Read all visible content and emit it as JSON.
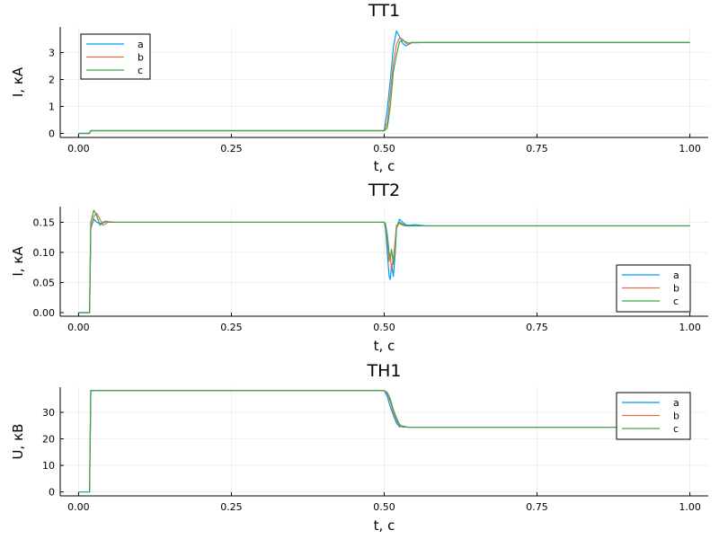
{
  "chart_data": [
    {
      "type": "line",
      "title": "ТТ1",
      "xlabel": "t, с",
      "ylabel": "I, кА",
      "xlim": [
        -0.03,
        1.03
      ],
      "ylim": [
        -0.15,
        3.95
      ],
      "x_ticks": [
        0.0,
        0.25,
        0.5,
        0.75,
        1.0
      ],
      "x_tick_labels": [
        "0.00",
        "0.25",
        "0.50",
        "0.75",
        "1.00"
      ],
      "y_ticks": [
        0,
        1,
        2,
        3
      ],
      "y_tick_labels": [
        "0",
        "1",
        "2",
        "3"
      ],
      "grid": true,
      "legend_position": "top-left",
      "series": [
        {
          "name": "a",
          "color": "#009AFA",
          "x": [
            0,
            0.018,
            0.02,
            0.5,
            0.505,
            0.51,
            0.515,
            0.52,
            0.525,
            0.53,
            0.535,
            0.54,
            0.545,
            0.55,
            0.56,
            0.6,
            1.0
          ],
          "y": [
            0,
            0,
            0.1,
            0.1,
            0.9,
            2.0,
            3.2,
            3.8,
            3.6,
            3.35,
            3.25,
            3.3,
            3.38,
            3.36,
            3.37,
            3.37,
            3.37
          ]
        },
        {
          "name": "b",
          "color": "#E36F47",
          "x": [
            0,
            0.018,
            0.02,
            0.5,
            0.505,
            0.51,
            0.515,
            0.52,
            0.525,
            0.53,
            0.535,
            0.54,
            0.545,
            0.55,
            0.56,
            0.6,
            1.0
          ],
          "y": [
            0,
            0,
            0.1,
            0.1,
            0.4,
            1.5,
            2.6,
            3.3,
            3.55,
            3.5,
            3.35,
            3.3,
            3.36,
            3.37,
            3.37,
            3.37,
            3.37
          ]
        },
        {
          "name": "c",
          "color": "#3EA44E",
          "x": [
            0,
            0.018,
            0.02,
            0.5,
            0.505,
            0.51,
            0.515,
            0.52,
            0.525,
            0.53,
            0.535,
            0.54,
            0.545,
            0.55,
            0.56,
            0.6,
            1.0
          ],
          "y": [
            0,
            0,
            0.1,
            0.1,
            0.2,
            1.0,
            2.3,
            2.9,
            3.4,
            3.45,
            3.4,
            3.35,
            3.37,
            3.37,
            3.37,
            3.37,
            3.37
          ]
        }
      ]
    },
    {
      "type": "line",
      "title": "ТТ2",
      "xlabel": "t, с",
      "ylabel": "I, кА",
      "xlim": [
        -0.03,
        1.03
      ],
      "ylim": [
        -0.006,
        0.176
      ],
      "x_ticks": [
        0.0,
        0.25,
        0.5,
        0.75,
        1.0
      ],
      "x_tick_labels": [
        "0.00",
        "0.25",
        "0.50",
        "0.75",
        "1.00"
      ],
      "y_ticks": [
        0,
        0.05,
        0.1,
        0.15
      ],
      "y_tick_labels": [
        "0.00",
        "0.05",
        "0.10",
        "0.15"
      ],
      "grid": true,
      "legend_position": "bottom-right",
      "series": [
        {
          "name": "a",
          "color": "#009AFA",
          "x": [
            0,
            0.018,
            0.02,
            0.025,
            0.03,
            0.035,
            0.04,
            0.045,
            0.05,
            0.06,
            0.08,
            0.5,
            0.502,
            0.505,
            0.508,
            0.51,
            0.512,
            0.515,
            0.518,
            0.52,
            0.525,
            0.53,
            0.535,
            0.54,
            0.55,
            0.57,
            0.6,
            1.0
          ],
          "y": [
            0,
            0,
            0.14,
            0.155,
            0.15,
            0.148,
            0.149,
            0.151,
            0.15,
            0.15,
            0.15,
            0.15,
            0.14,
            0.1,
            0.06,
            0.055,
            0.08,
            0.06,
            0.1,
            0.14,
            0.155,
            0.15,
            0.146,
            0.145,
            0.146,
            0.144,
            0.144,
            0.144
          ]
        },
        {
          "name": "b",
          "color": "#E36F47",
          "x": [
            0,
            0.018,
            0.02,
            0.025,
            0.03,
            0.035,
            0.04,
            0.045,
            0.05,
            0.06,
            0.08,
            0.5,
            0.502,
            0.505,
            0.508,
            0.51,
            0.512,
            0.515,
            0.518,
            0.52,
            0.525,
            0.53,
            0.535,
            0.54,
            0.55,
            0.57,
            0.6,
            1.0
          ],
          "y": [
            0,
            0,
            0.14,
            0.16,
            0.165,
            0.155,
            0.145,
            0.148,
            0.151,
            0.15,
            0.15,
            0.15,
            0.145,
            0.12,
            0.085,
            0.095,
            0.07,
            0.09,
            0.12,
            0.145,
            0.148,
            0.145,
            0.144,
            0.144,
            0.144,
            0.144,
            0.144,
            0.144
          ]
        },
        {
          "name": "c",
          "color": "#3EA44E",
          "x": [
            0,
            0.018,
            0.02,
            0.025,
            0.03,
            0.035,
            0.04,
            0.045,
            0.05,
            0.06,
            0.08,
            0.5,
            0.502,
            0.505,
            0.508,
            0.51,
            0.512,
            0.515,
            0.518,
            0.52,
            0.525,
            0.53,
            0.535,
            0.54,
            0.55,
            0.57,
            0.6,
            1.0
          ],
          "y": [
            0,
            0,
            0.15,
            0.17,
            0.16,
            0.145,
            0.15,
            0.152,
            0.15,
            0.15,
            0.15,
            0.15,
            0.148,
            0.13,
            0.1,
            0.09,
            0.105,
            0.08,
            0.1,
            0.14,
            0.15,
            0.147,
            0.145,
            0.144,
            0.144,
            0.144,
            0.144,
            0.144
          ]
        }
      ]
    },
    {
      "type": "line",
      "title": "ТН1",
      "xlabel": "t, с",
      "ylabel": "U, кВ",
      "xlim": [
        -0.03,
        1.03
      ],
      "ylim": [
        -1.5,
        39.5
      ],
      "x_ticks": [
        0.0,
        0.25,
        0.5,
        0.75,
        1.0
      ],
      "x_tick_labels": [
        "0.00",
        "0.25",
        "0.50",
        "0.75",
        "1.00"
      ],
      "y_ticks": [
        0,
        10,
        20,
        30
      ],
      "y_tick_labels": [
        "0",
        "10",
        "20",
        "30"
      ],
      "grid": true,
      "legend_position": "top-right",
      "series": [
        {
          "name": "a",
          "color": "#009AFA",
          "x": [
            0,
            0.018,
            0.02,
            0.5,
            0.505,
            0.51,
            0.515,
            0.52,
            0.525,
            0.53,
            0.54,
            0.55,
            0.6,
            1.0
          ],
          "y": [
            0,
            0,
            38.2,
            38.2,
            36,
            32,
            29,
            26,
            24.5,
            24.8,
            24.4,
            24.4,
            24.4,
            24.4
          ]
        },
        {
          "name": "b",
          "color": "#E36F47",
          "x": [
            0,
            0.018,
            0.02,
            0.5,
            0.505,
            0.51,
            0.515,
            0.52,
            0.525,
            0.53,
            0.54,
            0.55,
            0.6,
            1.0
          ],
          "y": [
            0,
            0,
            38.2,
            38.2,
            37,
            34,
            30,
            27,
            25,
            24.5,
            24.4,
            24.4,
            24.4,
            24.4
          ]
        },
        {
          "name": "c",
          "color": "#3EA44E",
          "x": [
            0,
            0.018,
            0.02,
            0.5,
            0.505,
            0.51,
            0.515,
            0.52,
            0.525,
            0.53,
            0.54,
            0.55,
            0.6,
            1.0
          ],
          "y": [
            0,
            0,
            38.2,
            38.2,
            37.5,
            35,
            31,
            28,
            25.5,
            24.6,
            24.4,
            24.4,
            24.4,
            24.4
          ]
        }
      ]
    }
  ]
}
